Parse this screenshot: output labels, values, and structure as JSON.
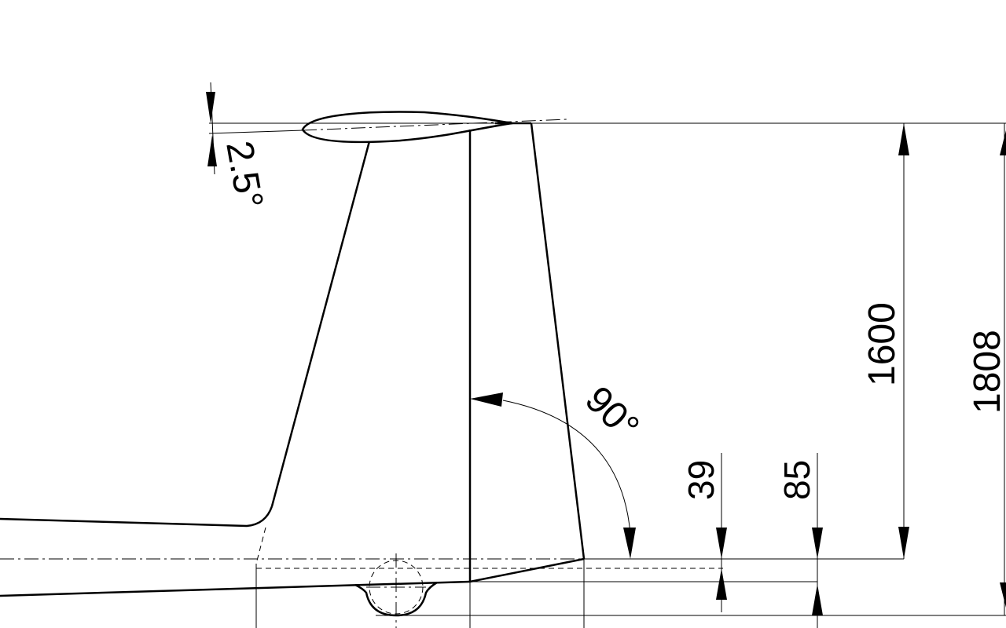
{
  "dimensions": {
    "airfoil_incidence": "2.5°",
    "fin_angle": "90°",
    "fin_height": "1600",
    "total_height": "1808",
    "offset_small": "39",
    "offset_large": "85"
  }
}
